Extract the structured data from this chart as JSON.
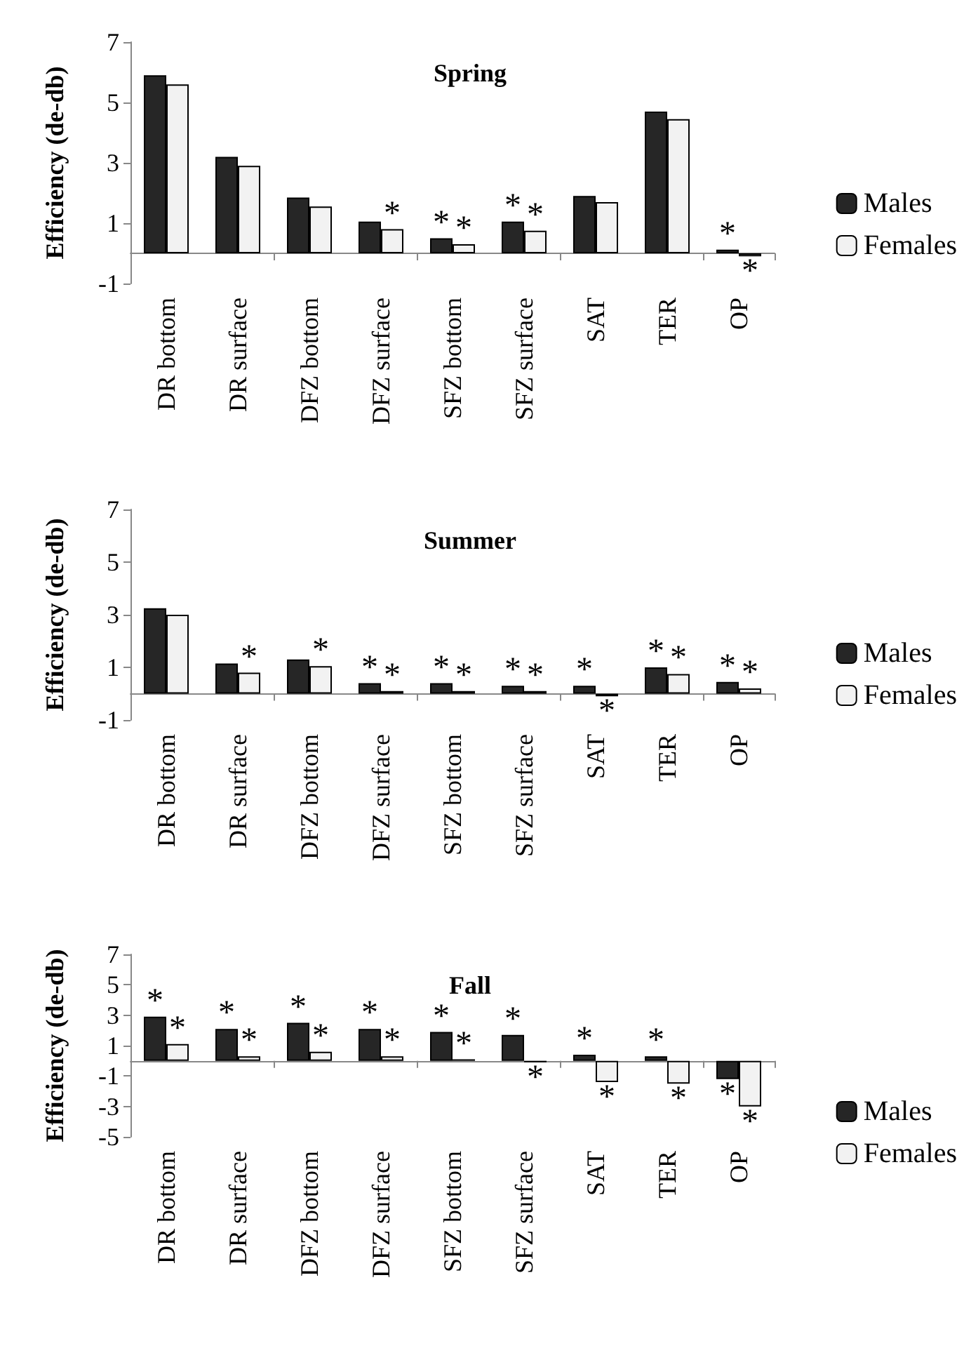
{
  "chart_data": [
    {
      "type": "bar",
      "title": "Spring",
      "ylabel": "Efficiency (de-db)",
      "categories": [
        "DR bottom",
        "DR surface",
        "DFZ bottom",
        "DFZ surface",
        "SFZ bottom",
        "SFZ surface",
        "SAT",
        "TER",
        "OP"
      ],
      "ylim": [
        -1,
        7
      ],
      "yticks": [
        -1,
        1,
        3,
        5,
        7
      ],
      "grid": false,
      "legend": "right",
      "series": [
        {
          "name": "Males",
          "color": "#262626",
          "values": [
            5.9,
            3.2,
            1.85,
            1.05,
            0.5,
            1.05,
            1.9,
            4.7,
            0.12
          ],
          "value_labels": [
            null,
            null,
            null,
            null,
            "*",
            "*",
            null,
            null,
            "*"
          ]
        },
        {
          "name": "Females",
          "color": "#f2f2f2",
          "values": [
            5.6,
            2.9,
            1.55,
            0.8,
            0.3,
            0.75,
            1.7,
            4.45,
            -0.1
          ],
          "value_labels": [
            null,
            null,
            null,
            "*",
            "*",
            "*",
            null,
            null,
            "*"
          ]
        }
      ]
    },
    {
      "type": "bar",
      "title": "Summer",
      "ylabel": "Efficiency (de-db)",
      "categories": [
        "DR bottom",
        "DR surface",
        "DFZ bottom",
        "DFZ surface",
        "SFZ bottom",
        "SFZ surface",
        "SAT",
        "TER",
        "OP"
      ],
      "ylim": [
        -1,
        7
      ],
      "yticks": [
        -1,
        1,
        3,
        5,
        7
      ],
      "grid": false,
      "legend": "right",
      "series": [
        {
          "name": "Males",
          "color": "#262626",
          "values": [
            3.25,
            1.15,
            1.3,
            0.4,
            0.4,
            0.3,
            0.3,
            1.0,
            0.45
          ],
          "value_labels": [
            null,
            null,
            null,
            "*",
            "*",
            "*",
            "*",
            "*",
            "*"
          ]
        },
        {
          "name": "Females",
          "color": "#f2f2f2",
          "values": [
            3.0,
            0.8,
            1.05,
            0.1,
            0.1,
            0.1,
            -0.1,
            0.75,
            0.2
          ],
          "value_labels": [
            null,
            "*",
            "*",
            "*",
            "*",
            "*",
            "*",
            "*",
            "*"
          ]
        }
      ]
    },
    {
      "type": "bar",
      "title": "Fall",
      "ylabel": "Efficiency (de-db)",
      "categories": [
        "DR bottom",
        "DR surface",
        "DFZ bottom",
        "DFZ surface",
        "SFZ bottom",
        "SFZ surface",
        "SAT",
        "TER",
        "OP"
      ],
      "ylim": [
        -5,
        7
      ],
      "yticks": [
        -5,
        -3,
        -1,
        1,
        3,
        5,
        7
      ],
      "grid": false,
      "legend": "right",
      "series": [
        {
          "name": "Males",
          "color": "#262626",
          "values": [
            2.9,
            2.1,
            2.5,
            2.1,
            1.9,
            1.7,
            0.4,
            0.3,
            -1.2
          ],
          "value_labels": [
            "*",
            "*",
            "*",
            "*",
            "*",
            "*",
            "*",
            "*",
            "*"
          ]
        },
        {
          "name": "Females",
          "color": "#f2f2f2",
          "values": [
            1.1,
            0.3,
            0.6,
            0.3,
            0.1,
            -0.1,
            -1.4,
            -1.5,
            -3.0
          ],
          "value_labels": [
            "*",
            "*",
            "*",
            "*",
            "*",
            "*",
            "*",
            "*",
            "*"
          ]
        }
      ]
    }
  ]
}
